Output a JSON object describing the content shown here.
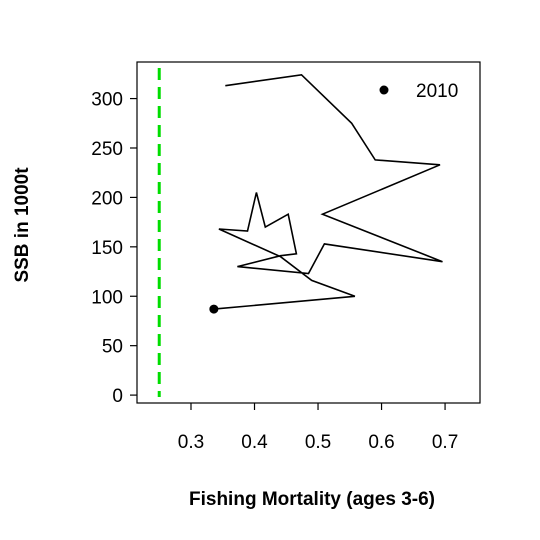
{
  "chart_data": {
    "type": "line",
    "xlabel": "Fishing Mortality (ages 3-6)",
    "ylabel": "SSB in 1000t",
    "xlim": [
      0.215,
      0.755
    ],
    "ylim": [
      -8,
      337
    ],
    "x_ticks": [
      0.3,
      0.4,
      0.5,
      0.6,
      0.7
    ],
    "x_tick_labels": [
      "0.3",
      "0.4",
      "0.5",
      "0.6",
      "0.7"
    ],
    "y_ticks": [
      0,
      50,
      100,
      150,
      200,
      250,
      300
    ],
    "y_tick_labels": [
      "0",
      "50",
      "100",
      "150",
      "200",
      "250",
      "300"
    ],
    "grid": false,
    "legend": {
      "position": "top-right",
      "marker": "filled-circle",
      "label": "2010"
    },
    "reference_line": {
      "orientation": "vertical",
      "x": 0.25,
      "color": "#00dd00",
      "style": "dashed"
    },
    "series": [
      {
        "color": "#000000",
        "points": [
          [
            0.354,
            313
          ],
          [
            0.474,
            324
          ],
          [
            0.553,
            275
          ],
          [
            0.59,
            238
          ],
          [
            0.692,
            233
          ],
          [
            0.507,
            183
          ],
          [
            0.696,
            135
          ],
          [
            0.51,
            153
          ],
          [
            0.485,
            123
          ],
          [
            0.373,
            130
          ],
          [
            0.441,
            141
          ],
          [
            0.466,
            143
          ],
          [
            0.453,
            183
          ],
          [
            0.417,
            170
          ],
          [
            0.403,
            205
          ],
          [
            0.389,
            166
          ],
          [
            0.344,
            168
          ],
          [
            0.441,
            140
          ],
          [
            0.49,
            116
          ],
          [
            0.558,
            100
          ],
          [
            0.336,
            87
          ]
        ],
        "end_marker": {
          "x": 0.336,
          "y": 87
        }
      }
    ]
  }
}
